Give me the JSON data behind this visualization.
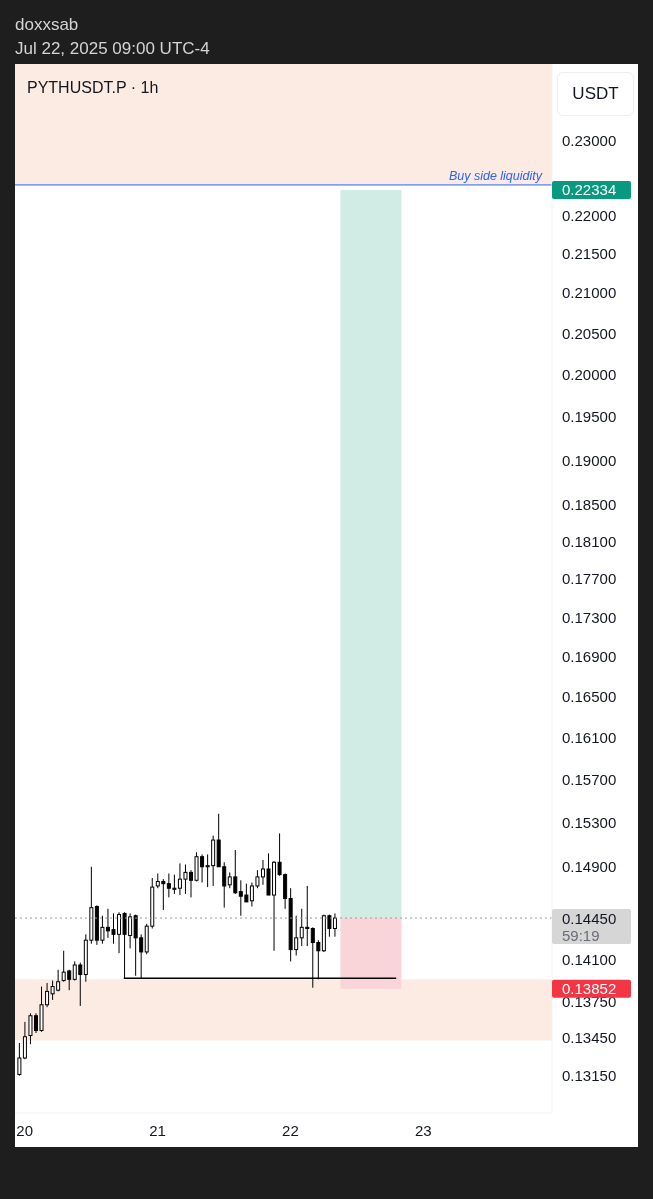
{
  "chart_data": {
    "type": "candlestick",
    "title": "PYTHUSDT.P · 1h",
    "ylabel": "USDT",
    "color": "#000000",
    "log": "y",
    "annotations": [
      "doxxsab",
      "Jul 22, 2025 09:00 UTC-4",
      "59:19"
    ],
    "x": [
      "2025-07-19T23:00",
      "2025-07-20T00:00",
      "2025-07-20T01:00",
      "2025-07-20T02:00",
      "2025-07-20T03:00",
      "2025-07-20T04:00",
      "2025-07-20T05:00",
      "2025-07-20T06:00",
      "2025-07-20T07:00",
      "2025-07-20T08:00",
      "2025-07-20T09:00",
      "2025-07-20T10:00",
      "2025-07-20T11:00",
      "2025-07-20T12:00",
      "2025-07-20T13:00",
      "2025-07-20T14:00",
      "2025-07-20T15:00",
      "2025-07-20T16:00",
      "2025-07-20T17:00",
      "2025-07-20T18:00",
      "2025-07-20T19:00",
      "2025-07-20T20:00",
      "2025-07-20T21:00",
      "2025-07-20T22:00",
      "2025-07-20T23:00",
      "2025-07-21T00:00",
      "2025-07-21T01:00",
      "2025-07-21T02:00",
      "2025-07-21T03:00",
      "2025-07-21T04:00",
      "2025-07-21T05:00",
      "2025-07-21T06:00",
      "2025-07-21T07:00",
      "2025-07-21T08:00",
      "2025-07-21T09:00",
      "2025-07-21T10:00",
      "2025-07-21T11:00",
      "2025-07-21T12:00",
      "2025-07-21T13:00",
      "2025-07-21T14:00",
      "2025-07-21T15:00",
      "2025-07-21T16:00",
      "2025-07-21T17:00",
      "2025-07-21T18:00",
      "2025-07-21T19:00",
      "2025-07-21T20:00",
      "2025-07-21T21:00",
      "2025-07-21T22:00",
      "2025-07-21T23:00",
      "2025-07-22T00:00",
      "2025-07-22T01:00",
      "2025-07-22T02:00",
      "2025-07-22T03:00",
      "2025-07-22T04:00",
      "2025-07-22T05:00",
      "2025-07-22T06:00",
      "2025-07-22T07:00",
      "2025-07-22T08:00"
    ],
    "ohlc": [
      [
        0.1316,
        0.1341,
        0.1315,
        0.1329
      ],
      [
        0.1329,
        0.1358,
        0.1328,
        0.1346
      ],
      [
        0.1347,
        0.1365,
        0.134,
        0.1363
      ],
      [
        0.1363,
        0.1365,
        0.1349,
        0.1351
      ],
      [
        0.1351,
        0.1387,
        0.135,
        0.1372
      ],
      [
        0.1372,
        0.139,
        0.137,
        0.1383
      ],
      [
        0.1381,
        0.1392,
        0.1376,
        0.1387
      ],
      [
        0.1384,
        0.1401,
        0.1383,
        0.1391
      ],
      [
        0.1392,
        0.1417,
        0.1391,
        0.1399
      ],
      [
        0.14,
        0.1401,
        0.1384,
        0.1393
      ],
      [
        0.1393,
        0.1408,
        0.1392,
        0.1405
      ],
      [
        0.1405,
        0.1407,
        0.1371,
        0.1397
      ],
      [
        0.1397,
        0.1431,
        0.1391,
        0.1426
      ],
      [
        0.1426,
        0.149,
        0.1423,
        0.1454
      ],
      [
        0.1455,
        0.1456,
        0.1422,
        0.1426
      ],
      [
        0.1426,
        0.1447,
        0.1423,
        0.1437
      ],
      [
        0.1437,
        0.1453,
        0.1428,
        0.1434
      ],
      [
        0.1435,
        0.1449,
        0.1423,
        0.1431
      ],
      [
        0.1431,
        0.145,
        0.1415,
        0.1448
      ],
      [
        0.1449,
        0.145,
        0.1394,
        0.1431
      ],
      [
        0.143,
        0.1449,
        0.1419,
        0.1446
      ],
      [
        0.1447,
        0.1448,
        0.1396,
        0.1428
      ],
      [
        0.1428,
        0.1431,
        0.1394,
        0.1416
      ],
      [
        0.1416,
        0.144,
        0.1414,
        0.1438
      ],
      [
        0.1438,
        0.148,
        0.1436,
        0.1472
      ],
      [
        0.1473,
        0.1484,
        0.1471,
        0.1477
      ],
      [
        0.1477,
        0.1479,
        0.1452,
        0.1475
      ],
      [
        0.1475,
        0.1484,
        0.1463,
        0.1471
      ],
      [
        0.147,
        0.1483,
        0.1466,
        0.1471
      ],
      [
        0.1471,
        0.1493,
        0.1465,
        0.1479
      ],
      [
        0.1479,
        0.1492,
        0.1466,
        0.1485
      ],
      [
        0.1485,
        0.1487,
        0.1463,
        0.1478
      ],
      [
        0.1478,
        0.1503,
        0.1477,
        0.1499
      ],
      [
        0.1499,
        0.1501,
        0.1476,
        0.149
      ],
      [
        0.149,
        0.1501,
        0.1472,
        0.1491
      ],
      [
        0.1491,
        0.1518,
        0.1473,
        0.1514
      ],
      [
        0.1514,
        0.1538,
        0.149,
        0.149
      ],
      [
        0.149,
        0.1494,
        0.1454,
        0.1473
      ],
      [
        0.1474,
        0.1485,
        0.1471,
        0.1481
      ],
      [
        0.1481,
        0.1505,
        0.1466,
        0.1467
      ],
      [
        0.1468,
        0.1478,
        0.1447,
        0.1464
      ],
      [
        0.1465,
        0.1475,
        0.1459,
        0.1459
      ],
      [
        0.146,
        0.1476,
        0.1455,
        0.1473
      ],
      [
        0.1473,
        0.1487,
        0.1471,
        0.1481
      ],
      [
        0.1481,
        0.1496,
        0.1474,
        0.1488
      ],
      [
        0.1488,
        0.1502,
        0.1465,
        0.1465
      ],
      [
        0.1465,
        0.1495,
        0.1417,
        0.1494
      ],
      [
        0.1494,
        0.152,
        0.1482,
        0.1483
      ],
      [
        0.1483,
        0.1484,
        0.1453,
        0.1462
      ],
      [
        0.1462,
        0.1471,
        0.1408,
        0.1418
      ],
      [
        0.1418,
        0.1447,
        0.1413,
        0.1428
      ],
      [
        0.1428,
        0.1453,
        0.1421,
        0.1437
      ],
      [
        0.1437,
        0.1473,
        0.1421,
        0.1436
      ],
      [
        0.1436,
        0.1437,
        0.1386,
        0.1424
      ],
      [
        0.1424,
        0.1426,
        0.1393,
        0.1417
      ],
      [
        0.1417,
        0.1448,
        0.1416,
        0.1447
      ],
      [
        0.1447,
        0.1448,
        0.1429,
        0.1436
      ],
      [
        0.1436,
        0.1449,
        0.1429,
        0.1445
      ]
    ],
    "series": [
      {
        "type": "bar",
        "x": [
          "2025-07-22T14:30"
        ],
        "base": [
          0.1445
        ],
        "values": [
          0.07884
        ],
        "color": "#d1ebe5"
      },
      {
        "type": "bar",
        "x": [
          "2025-07-22T14:30"
        ],
        "base": [
          0.13852
        ],
        "values": [
          0.00598
        ],
        "color": "#f9d5da"
      },
      {
        "type": "line",
        "x": [
          "2025-07-20T18:00",
          "2025-07-22T19:00"
        ],
        "values": [
          0.1394,
          0.1394
        ],
        "color": "#000000"
      }
    ],
    "ref_lines": [
      {
        "axis": "y",
        "value": 0.224,
        "label": "Buy side liquidity",
        "color": "#2962ff"
      },
      {
        "axis": "y",
        "value": 0.1445,
        "color": "#9598a1",
        "line_style": "dotted"
      }
    ],
    "bands": [
      {
        "axis": "y",
        "from": 0.224,
        "to": 0.2408,
        "color": "#fcebe2"
      },
      {
        "axis": "y",
        "from": 0.1343,
        "to": 0.1393,
        "color": "#fcebe2"
      }
    ],
    "xlim": [
      "2025-07-19T22:15",
      "2025-07-23T23:15"
    ],
    "xticks": [
      {
        "value": "2025-07-20",
        "label": "20"
      },
      {
        "value": "2025-07-21",
        "label": "21"
      },
      {
        "value": "2025-07-22",
        "label": "22"
      },
      {
        "value": "2025-07-23",
        "label": "23"
      }
    ],
    "ylim": [
      0.1286,
      0.2408
    ],
    "yticks": [
      {
        "value": 0.23,
        "label": "0.23000"
      },
      0.22334,
      {
        "value": 0.22,
        "label": "0.22000"
      },
      {
        "value": 0.215,
        "label": "0.21500"
      },
      {
        "value": 0.21,
        "label": "0.21000"
      },
      {
        "value": 0.205,
        "label": "0.20500"
      },
      {
        "value": 0.2,
        "label": "0.20000"
      },
      {
        "value": 0.195,
        "label": "0.19500"
      },
      {
        "value": 0.19,
        "label": "0.19000"
      },
      {
        "value": 0.185,
        "label": "0.18500"
      },
      {
        "value": 0.181,
        "label": "0.18100"
      },
      {
        "value": 0.177,
        "label": "0.17700"
      },
      {
        "value": 0.173,
        "label": "0.17300"
      },
      {
        "value": 0.169,
        "label": "0.16900"
      },
      {
        "value": 0.165,
        "label": "0.16500"
      },
      {
        "value": 0.161,
        "label": "0.16100"
      },
      {
        "value": 0.157,
        "label": "0.15700"
      },
      {
        "value": 0.153,
        "label": "0.15300"
      },
      {
        "value": 0.149,
        "label": "0.14900"
      },
      {
        "value": 0.1445,
        "label": "0.14450"
      },
      {
        "value": 0.141,
        "label": "0.14100"
      },
      0.13852,
      {
        "value": 0.1375,
        "label": "0.13750"
      },
      {
        "value": 0.1345,
        "label": "0.13450"
      },
      {
        "value": 0.1315,
        "label": "0.13150"
      }
    ]
  }
}
